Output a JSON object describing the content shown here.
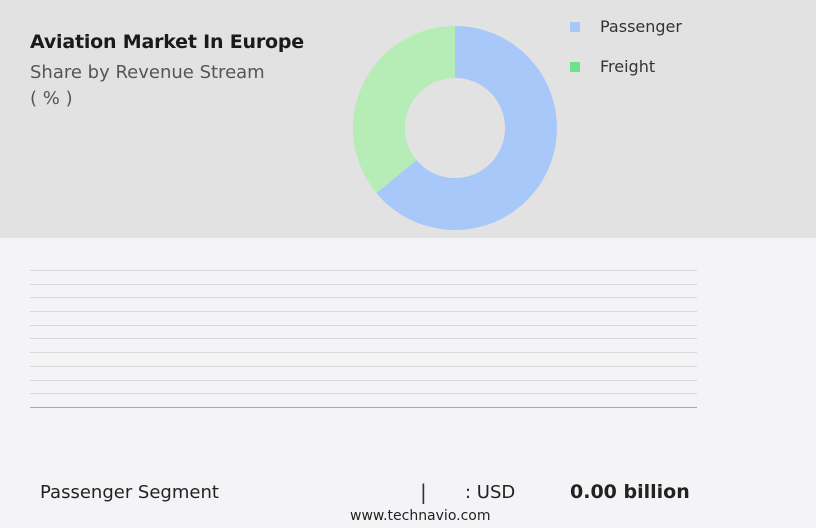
{
  "chart_data": {
    "type": "pie",
    "title": "Aviation Market In Europe",
    "subtitle": "Share by Revenue Stream",
    "unit": "( % )",
    "categories": [
      "Passenger",
      "Freight"
    ],
    "values": [
      64,
      36
    ],
    "colors": [
      "#a8c8fa",
      "#b6ecb6"
    ],
    "legend_colors": [
      "#a8c8fa",
      "#6ee08e"
    ],
    "legend_position": "top-right",
    "donut": true
  },
  "footer": {
    "segment": "Passenger Segment",
    "divider": "|",
    "currency": ": USD",
    "value": "0.00 billion",
    "site": "www.technavio.com"
  }
}
